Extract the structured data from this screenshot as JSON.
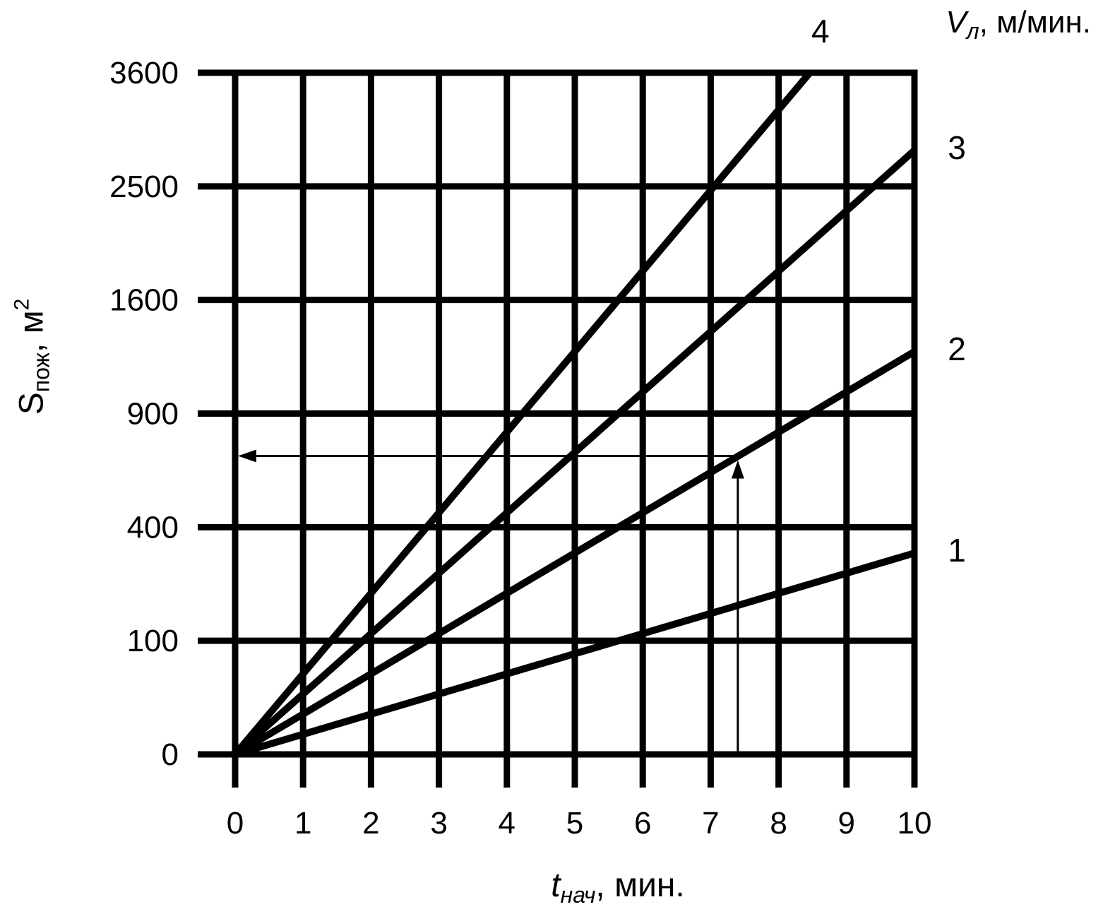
{
  "page": {
    "background": "#ffffff",
    "foreground": "#000000"
  },
  "axes": {
    "y_title": {
      "main": "S",
      "sub": "пож",
      "rest": ", м",
      "sup": "2"
    },
    "x_title": {
      "main": "t",
      "sub": "нач",
      "rest": ", мин."
    },
    "legend_title": {
      "main": "V",
      "sub": "л",
      "rest": ", м/мин."
    }
  },
  "chart_data": {
    "type": "line",
    "title": "",
    "xlabel": "t_нач, мин.",
    "ylabel": "S_пож, м²",
    "right_axis_label": "V_л, м/мин.",
    "x_ticks": [
      0,
      1,
      2,
      3,
      4,
      5,
      6,
      7,
      8,
      9,
      10
    ],
    "y_ticks": [
      0,
      100,
      400,
      900,
      1600,
      2500,
      3600
    ],
    "x_range": [
      0,
      10
    ],
    "y_range": [
      0,
      3600
    ],
    "y_scale": "sqrt",
    "grid": "on",
    "legend_position": "right",
    "line_color": "#000000",
    "background_color": "#ffffff",
    "series": [
      {
        "name": "1",
        "v_l": 1,
        "points": [
          [
            0,
            0
          ],
          [
            10,
            314
          ]
        ]
      },
      {
        "name": "2",
        "v_l": 2,
        "points": [
          [
            0,
            0
          ],
          [
            10,
            1257
          ]
        ]
      },
      {
        "name": "3",
        "v_l": 3,
        "points": [
          [
            0,
            0
          ],
          [
            10,
            2827
          ]
        ]
      },
      {
        "name": "4",
        "v_l": 4,
        "points": [
          [
            0,
            0
          ],
          [
            8.46,
            3600
          ]
        ]
      }
    ],
    "annotation_arrows": {
      "t": 7.4,
      "s": 690,
      "on_series": "2",
      "description": "example reading: vertical arrow up from t=7.4 to curve V=2, horizontal arrow left to S axis"
    }
  }
}
